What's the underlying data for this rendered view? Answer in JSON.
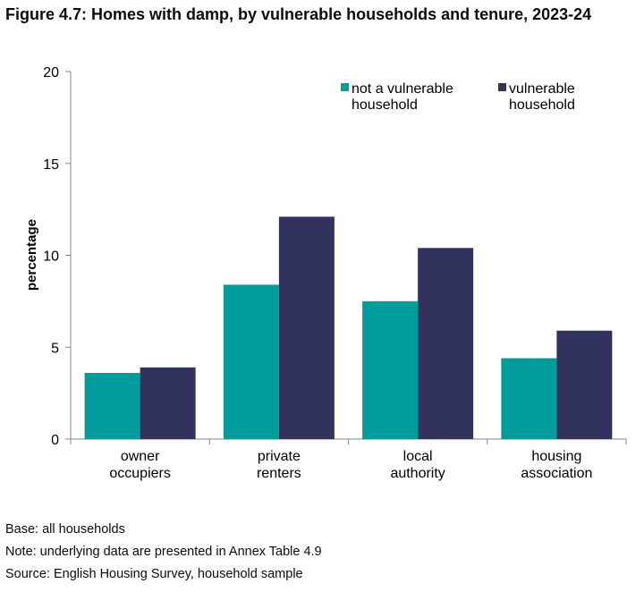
{
  "figure_title": "Figure 4.7: Homes with damp, by vulnerable households and tenure, 2023-24",
  "chart_data": {
    "type": "bar",
    "categories": [
      [
        "owner",
        "occupiers"
      ],
      [
        "private",
        "renters"
      ],
      [
        "local",
        "authority"
      ],
      [
        "housing",
        "association"
      ]
    ],
    "series": [
      {
        "name": [
          "not a vulnerable",
          "household"
        ],
        "color": "#009b9b",
        "values": [
          3.6,
          8.4,
          7.5,
          4.4
        ]
      },
      {
        "name": [
          "vulnerable",
          "household"
        ],
        "color": "#32325f",
        "values": [
          3.9,
          12.1,
          10.4,
          5.9
        ]
      }
    ],
    "xlabel": "",
    "ylabel": "percentage",
    "ylim": [
      0,
      20
    ],
    "yticks": [
      "0",
      "5",
      "10",
      "15",
      "20"
    ],
    "grid": false,
    "legend": "top-right"
  },
  "notes": {
    "base": "Base: all households",
    "note": "Note: underlying data are presented in Annex Table 4.9",
    "source": "Source: English Housing Survey, household sample"
  }
}
